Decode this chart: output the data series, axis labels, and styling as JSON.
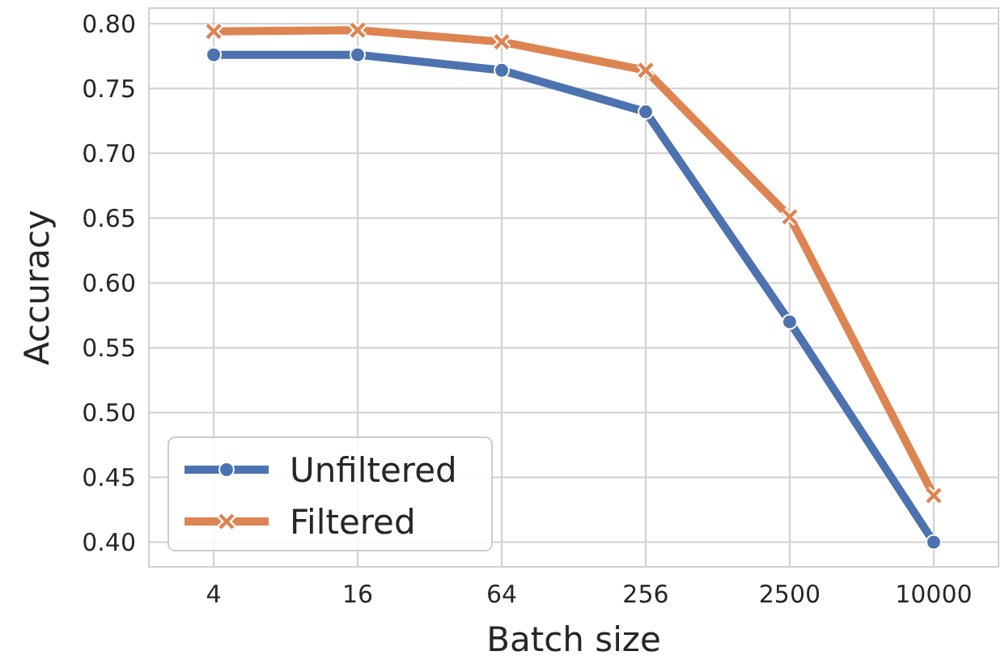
{
  "chart_data": {
    "type": "line",
    "xlabel": "Batch size",
    "ylabel": "Accuracy",
    "categories": [
      "4",
      "16",
      "64",
      "256",
      "2500",
      "10000"
    ],
    "series": [
      {
        "name": "Unfiltered",
        "color": "#4c72b0",
        "marker": "circle",
        "values": [
          0.776,
          0.776,
          0.764,
          0.732,
          0.57,
          0.4
        ]
      },
      {
        "name": "Filtered",
        "color": "#dd8452",
        "marker": "cross",
        "values": [
          0.794,
          0.795,
          0.786,
          0.764,
          0.651,
          0.436
        ]
      }
    ],
    "ylim": [
      0.381,
      0.812
    ],
    "yticks": [
      {
        "value": 0.4,
        "label": "0.40"
      },
      {
        "value": 0.45,
        "label": "0.45"
      },
      {
        "value": 0.5,
        "label": "0.50"
      },
      {
        "value": 0.55,
        "label": "0.55"
      },
      {
        "value": 0.6,
        "label": "0.60"
      },
      {
        "value": 0.65,
        "label": "0.65"
      },
      {
        "value": 0.7,
        "label": "0.70"
      },
      {
        "value": 0.75,
        "label": "0.75"
      },
      {
        "value": 0.8,
        "label": "0.80"
      }
    ],
    "grid": true,
    "legend": "bottom left",
    "line_style": "solid"
  }
}
